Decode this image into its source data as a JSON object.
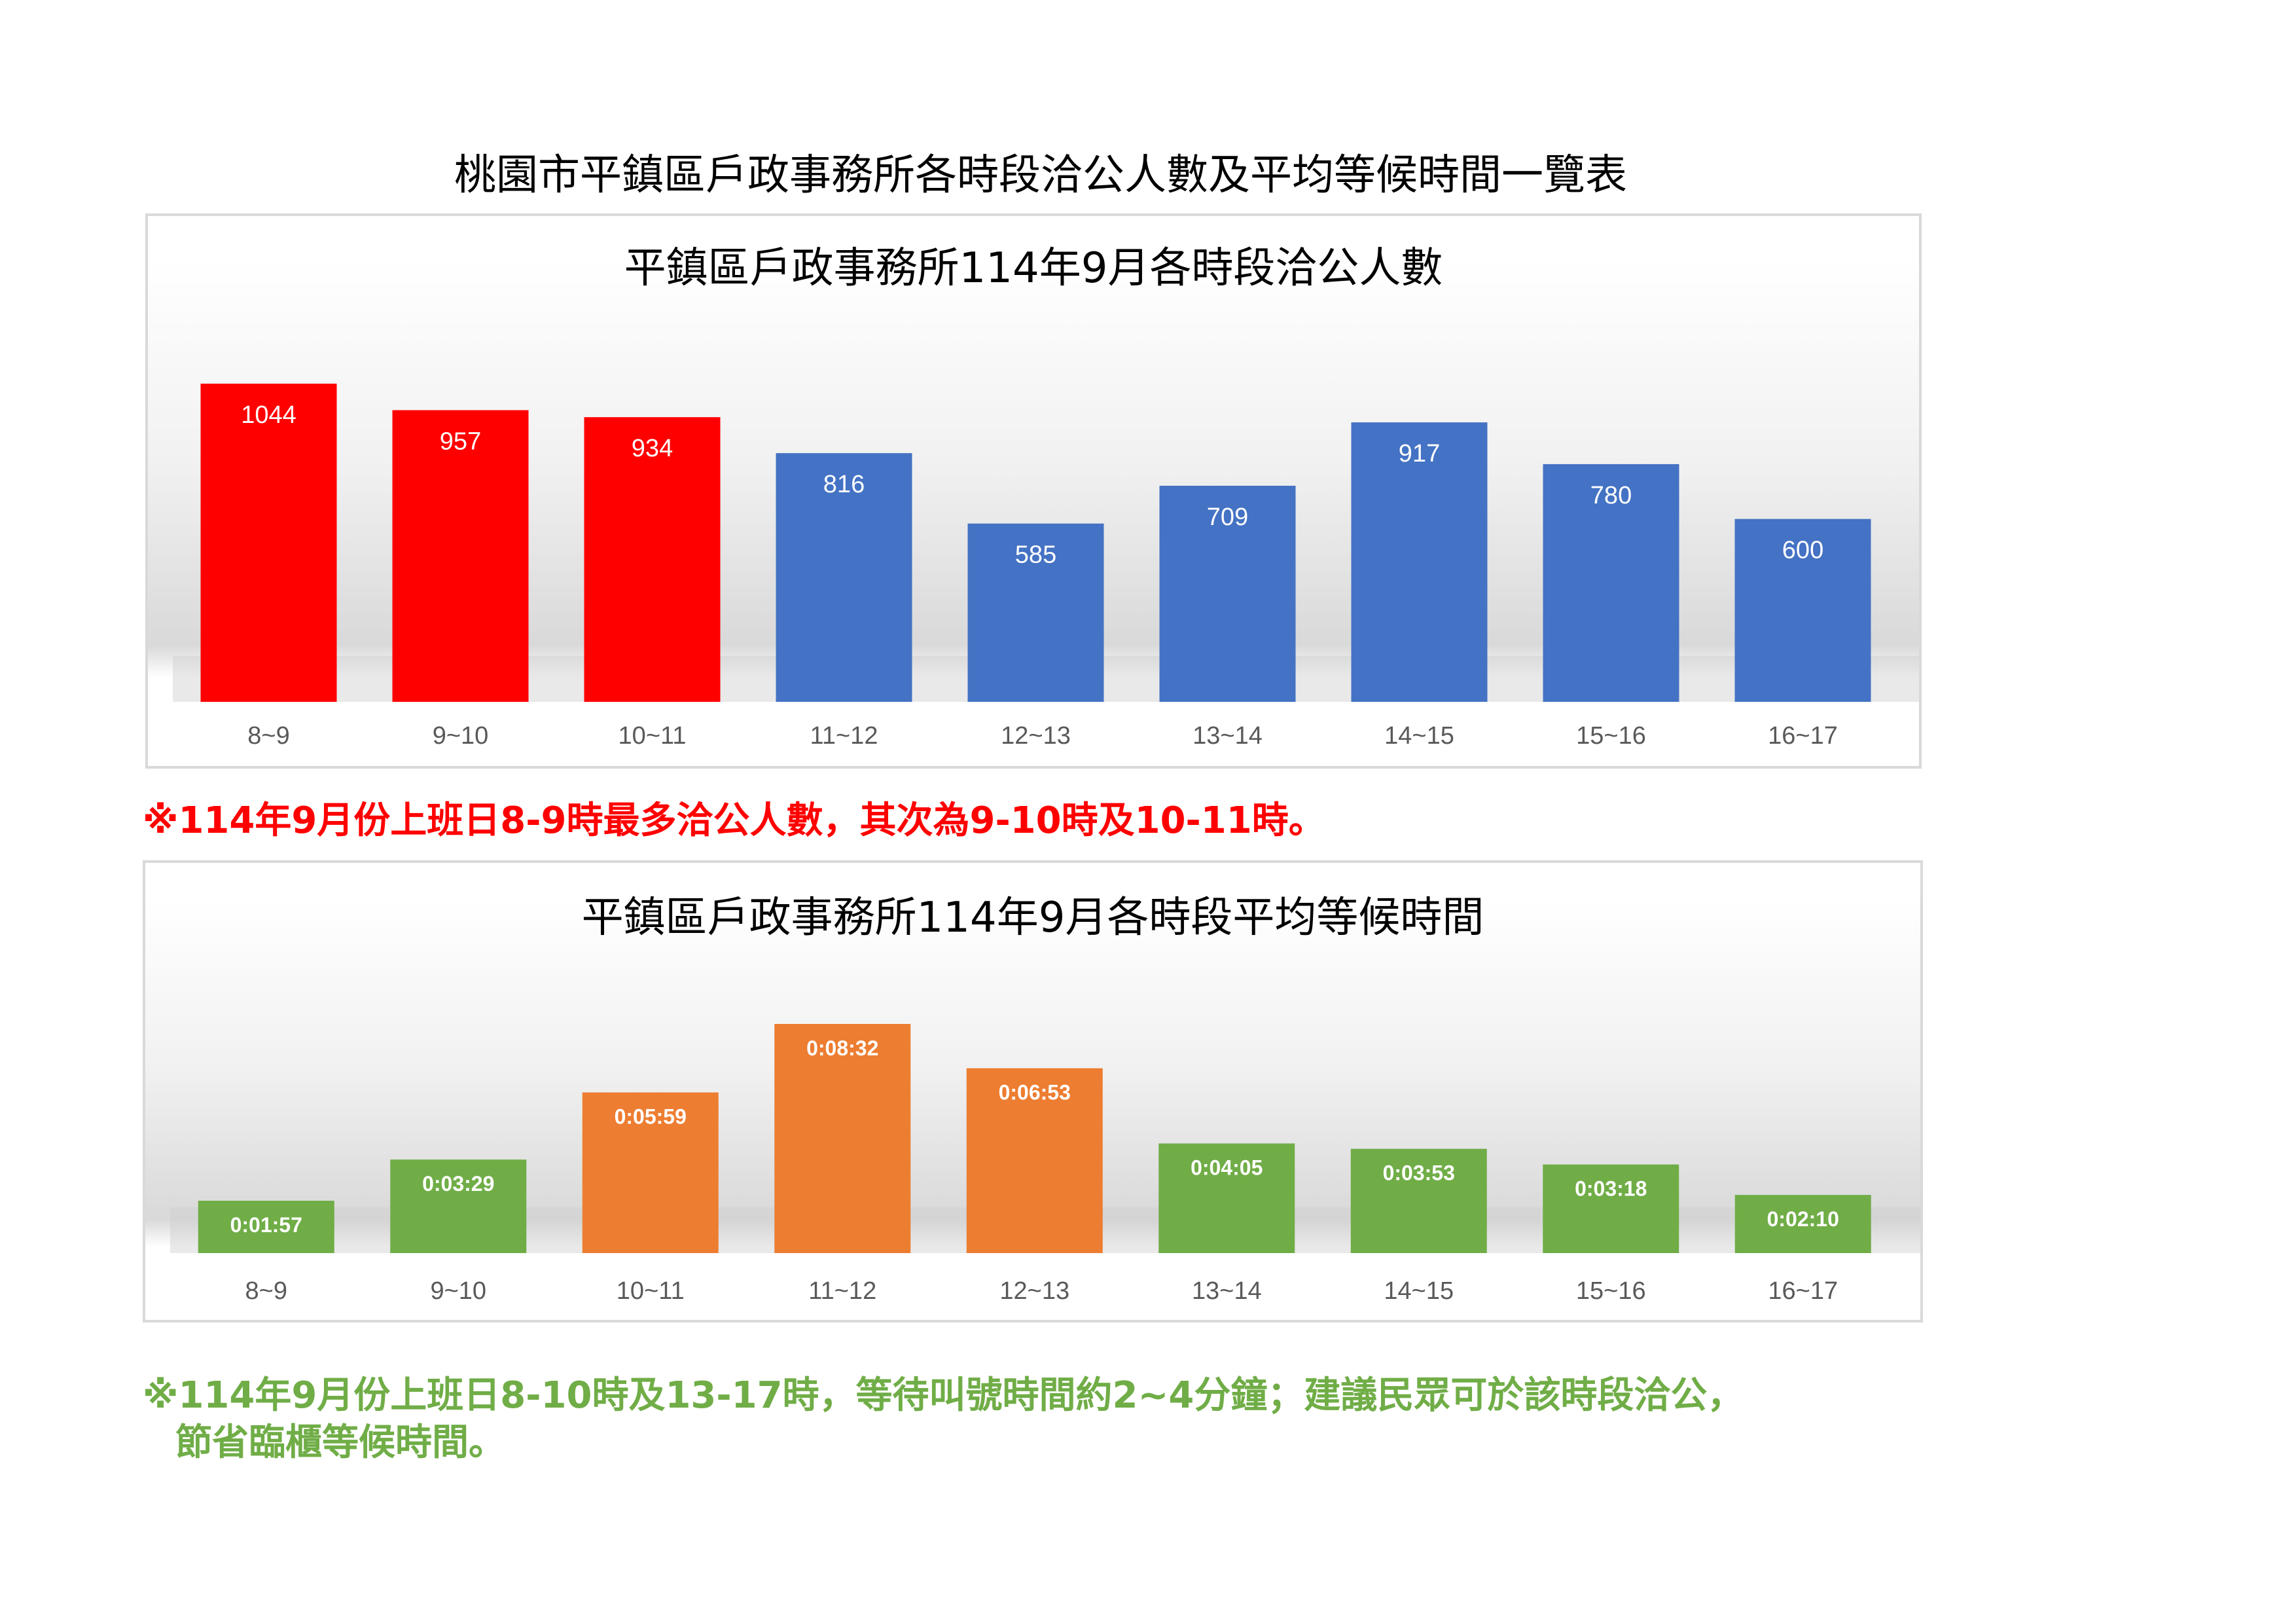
{
  "page_title": "桃園市平鎮區戶政事務所各時段洽公人數及平均等候時間一覽表",
  "notes": {
    "red": "※114年9月份上班日8-9時最多洽公人數，其次為9-10時及10-11時。",
    "green_line1": "※114年9月份上班日8-10時及13-17時，等待叫號時間約2~4分鐘；建議民眾可於該時段洽公，",
    "green_line2": "節省臨櫃等候時間。"
  },
  "colors": {
    "red": "#ff0000",
    "blue": "#4472c4",
    "orange": "#ed7d31",
    "green": "#70ad47",
    "note_red": "#ff0000",
    "note_green": "#70ad47"
  },
  "chart_data": [
    {
      "type": "bar",
      "title": "平鎮區戶政事務所114年9月各時段洽公人數",
      "categories": [
        "8~9",
        "9~10",
        "10~11",
        "11~12",
        "12~13",
        "13~14",
        "14~15",
        "15~16",
        "16~17"
      ],
      "values": [
        1044,
        957,
        934,
        816,
        585,
        709,
        917,
        780,
        600
      ],
      "labels": [
        "1044",
        "957",
        "934",
        "816",
        "585",
        "709",
        "917",
        "780",
        "600"
      ],
      "bar_colors": [
        "red",
        "red",
        "red",
        "blue",
        "blue",
        "blue",
        "blue",
        "blue",
        "blue"
      ],
      "ylim": [
        0,
        1044
      ],
      "grid": false,
      "legend": "none"
    },
    {
      "type": "bar",
      "title": "平鎮區戶政事務所114年9月各時段平均等候時間",
      "categories": [
        "8~9",
        "9~10",
        "10~11",
        "11~12",
        "12~13",
        "13~14",
        "14~15",
        "15~16",
        "16~17"
      ],
      "values_seconds": [
        117,
        209,
        359,
        512,
        413,
        245,
        233,
        198,
        130
      ],
      "labels": [
        "0:01:57",
        "0:03:29",
        "0:05:59",
        "0:08:32",
        "0:06:53",
        "0:04:05",
        "0:03:53",
        "0:03:18",
        "0:02:10"
      ],
      "bar_colors": [
        "green",
        "green",
        "orange",
        "orange",
        "orange",
        "green",
        "green",
        "green",
        "green"
      ],
      "ylim": [
        0,
        512
      ],
      "grid": false,
      "legend": "none"
    }
  ]
}
